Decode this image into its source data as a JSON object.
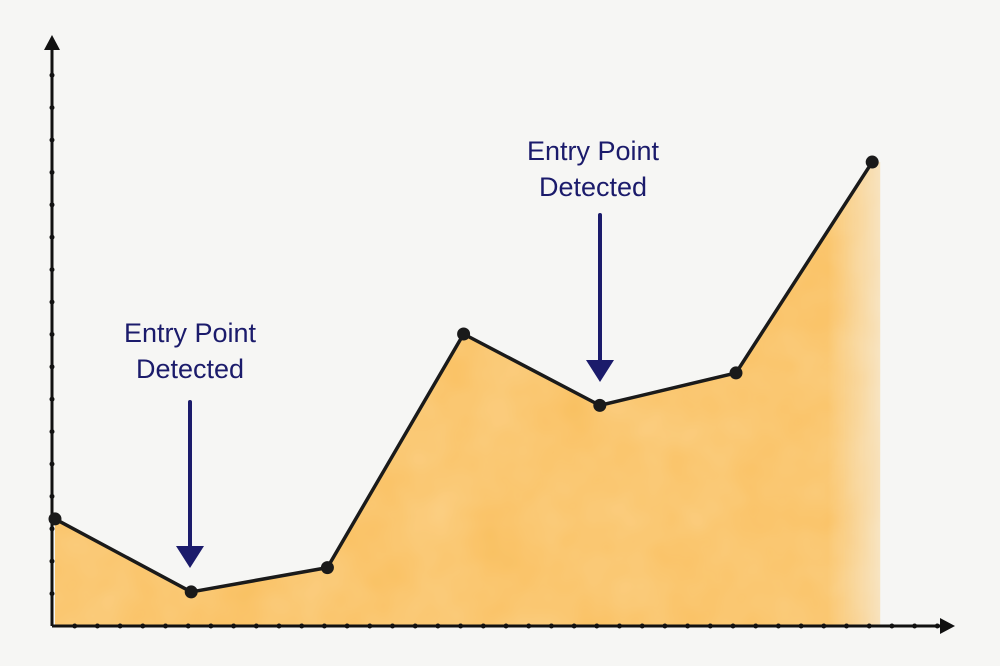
{
  "chart_data": {
    "type": "area",
    "categories": [
      null,
      null,
      null,
      null,
      null,
      null,
      null
    ],
    "values": [
      3.3,
      1.05,
      1.8,
      9.0,
      6.8,
      7.8,
      14.3
    ],
    "ylim": [
      0,
      18
    ],
    "color": "#f9bf5e",
    "line_color": "#1a1a1a",
    "annotations": [
      {
        "lines": [
          "Entry Point",
          "Detected"
        ]
      },
      {
        "lines": [
          "Entry Point",
          "Detected"
        ]
      }
    ]
  }
}
